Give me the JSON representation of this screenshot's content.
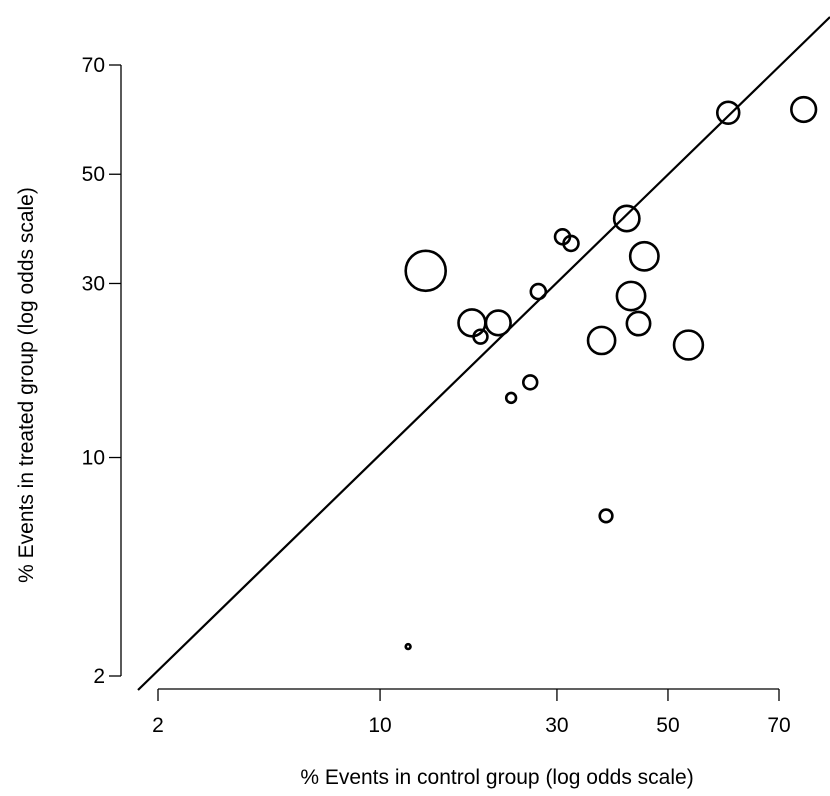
{
  "chart_data": {
    "type": "scatter",
    "xlabel": "% Events in control group (log odds scale)",
    "ylabel": "% Events in treated group (log odds scale)",
    "scale": "logit (log odds)",
    "x_ticks": [
      2,
      10,
      30,
      50,
      70
    ],
    "y_ticks": [
      2,
      10,
      30,
      50,
      70
    ],
    "reference_line": "y = x",
    "note": "circle area proportional to study weight",
    "points": [
      {
        "x": 13.6,
        "y": 32.1,
        "weight": 1.0
      },
      {
        "x": 18.3,
        "y": 24.0,
        "weight": 0.45
      },
      {
        "x": 19.3,
        "y": 22.1,
        "weight": 0.12
      },
      {
        "x": 21.5,
        "y": 24.0,
        "weight": 0.38
      },
      {
        "x": 23.2,
        "y": 15.0,
        "weight": 0.06
      },
      {
        "x": 25.9,
        "y": 16.6,
        "weight": 0.12
      },
      {
        "x": 27.1,
        "y": 28.7,
        "weight": 0.14
      },
      {
        "x": 30.9,
        "y": 38.1,
        "weight": 0.14
      },
      {
        "x": 32.3,
        "y": 36.9,
        "weight": 0.14
      },
      {
        "x": 37.6,
        "y": 21.6,
        "weight": 0.46
      },
      {
        "x": 38.4,
        "y": 6.6,
        "weight": 0.1
      },
      {
        "x": 42.2,
        "y": 41.5,
        "weight": 0.4
      },
      {
        "x": 43.0,
        "y": 28.0,
        "weight": 0.5
      },
      {
        "x": 44.4,
        "y": 23.9,
        "weight": 0.34
      },
      {
        "x": 45.5,
        "y": 34.6,
        "weight": 0.5
      },
      {
        "x": 53.9,
        "y": 21.0,
        "weight": 0.52
      },
      {
        "x": 61.3,
        "y": 61.7,
        "weight": 0.3
      },
      {
        "x": 73.8,
        "y": 62.3,
        "weight": 0.38
      },
      {
        "x": 12.1,
        "y": 2.5,
        "weight": 0.01
      }
    ]
  }
}
